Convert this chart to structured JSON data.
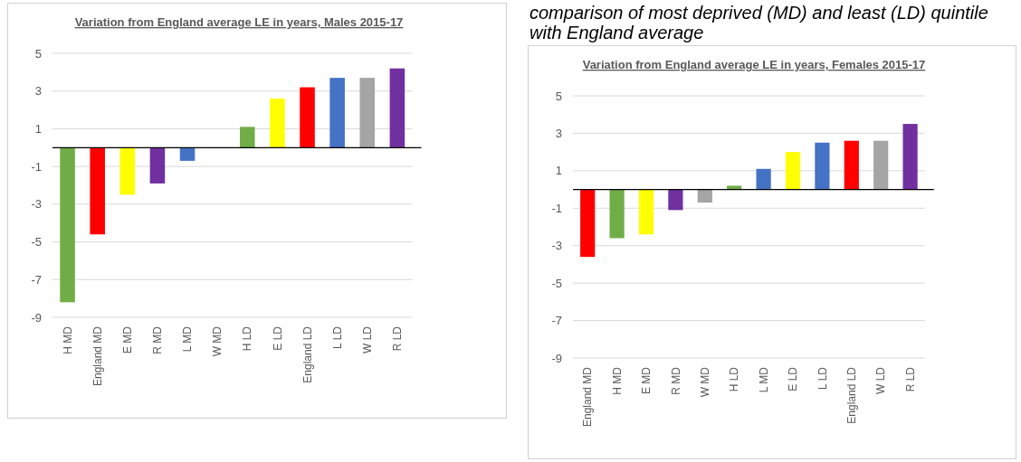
{
  "chart_data": [
    {
      "type": "bar",
      "title": "Variation from England average LE in years, Males  2015-17",
      "categories": [
        "H MD",
        "England MD",
        "E MD",
        "R MD",
        "L MD",
        "W MD",
        "H LD",
        "E LD",
        "England LD",
        "L LD",
        "W LD",
        "R LD"
      ],
      "values": [
        -8.2,
        -4.6,
        -2.5,
        -1.9,
        -0.7,
        0,
        1.1,
        2.6,
        3.2,
        3.7,
        3.7,
        4.2
      ],
      "colors": [
        "#70ad47",
        "#ff0000",
        "#ffff00",
        "#7030a0",
        "#4472c4",
        "#a5a5a5",
        "#70ad47",
        "#ffff00",
        "#ff0000",
        "#4472c4",
        "#a5a5a5",
        "#7030a0"
      ],
      "ylim": [
        -9,
        5
      ],
      "yticks": [
        5,
        3,
        1,
        -1,
        -3,
        -5,
        -7,
        -9
      ],
      "grid": "y"
    },
    {
      "type": "bar",
      "title": "Variation from England average LE in years, Females  2015-17",
      "categories": [
        "England MD",
        "H MD",
        "E MD",
        "R MD",
        "W MD",
        "H LD",
        "L MD",
        "E LD",
        "L LD",
        "England LD",
        "W LD",
        "R LD"
      ],
      "values": [
        -3.6,
        -2.6,
        -2.4,
        -1.1,
        -0.7,
        0.2,
        1.1,
        2.0,
        2.5,
        2.6,
        2.6,
        3.5
      ],
      "colors": [
        "#ff0000",
        "#70ad47",
        "#ffff00",
        "#7030a0",
        "#a5a5a5",
        "#70ad47",
        "#4472c4",
        "#ffff00",
        "#4472c4",
        "#ff0000",
        "#a5a5a5",
        "#7030a0"
      ],
      "ylim": [
        -9,
        5
      ],
      "yticks": [
        5,
        3,
        1,
        -1,
        -3,
        -5,
        -7,
        -9
      ],
      "grid": "y",
      "annotations": [
        "comparison of most deprived (MD) and least (LD) quintile with England average"
      ]
    }
  ]
}
